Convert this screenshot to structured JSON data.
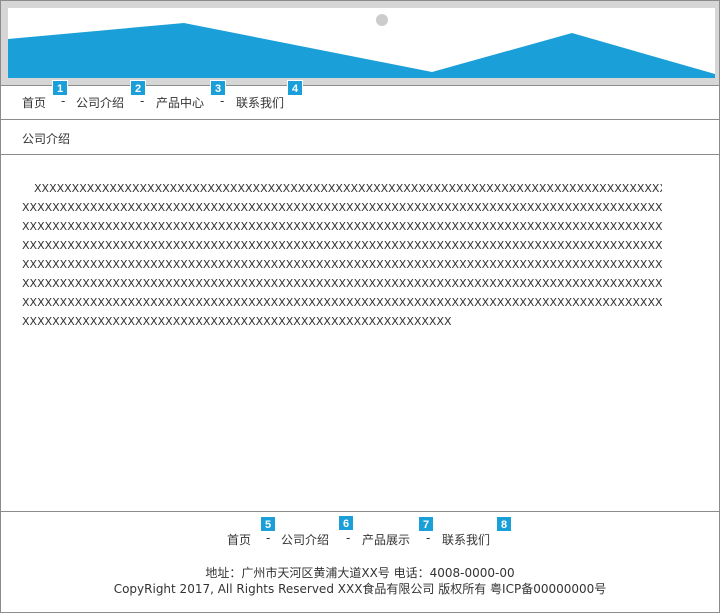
{
  "banner": {
    "colors": {
      "frame": "#d6d6d6",
      "mountain": "#1a9fd9",
      "sun": "#cccccc"
    }
  },
  "nav": {
    "items": [
      {
        "label": "首页",
        "badge": "1"
      },
      {
        "label": "公司介绍",
        "badge": "2"
      },
      {
        "label": "产品中心",
        "badge": "3"
      },
      {
        "label": "联系我们",
        "badge": "4"
      }
    ],
    "separator": "-"
  },
  "breadcrumb": {
    "title": "公司介绍"
  },
  "content": {
    "lines": [
      "XXXXXXXXXXXXXXXXXXXXXXXXXXXXXXXXXXXXXXXXXXXXXXXXXXXXXXXXXXXXXXXXXXXXXXXXXXXXXXXXXXXXXXXXXX",
      "XXXXXXXXXXXXXXXXXXXXXXXXXXXXXXXXXXXXXXXXXXXXXXXXXXXXXXXXXXXXXXXXXXXXXXXXXXXXXXXXXXXXXXXXXXXXXXX",
      "XXXXXXXXXXXXXXXXXXXXXXXXXXXXXXXXXXXXXXXXXXXXXXXXXXXXXXXXXXXXXXXXXXXXXXXXXXXXXXXXXXXXXXXXXXXXXXX",
      "XXXXXXXXXXXXXXXXXXXXXXXXXXXXXXXXXXXXXXXXXXXXXXXXXXXXXXXXXXXXXXXXXXXXXXXXXXXXXXXXXXXXXXXXXXXXXXX",
      "XXXXXXXXXXXXXXXXXXXXXXXXXXXXXXXXXXXXXXXXXXXXXXXXXXXXXXXXXXXXXXXXXXXXXXXXXXXXXXXXXXXXXXXXXXXXXXX",
      "XXXXXXXXXXXXXXXXXXXXXXXXXXXXXXXXXXXXXXXXXXXXXXXXXXXXXXXXXXXXXXXXXXXXXXXXXXXXXXXXXXXXXXXXXXXXXXX",
      "XXXXXXXXXXXXXXXXXXXXXXXXXXXXXXXXXXXXXXXXXXXXXXXXXXXXXXXXXXXXXXXXXXXXXXXXXXXXXXXXXXXXXXXXXXXXXXX",
      "XXXXXXXXXXXXXXXXXXXXXXXXXXXXXXXXXXXXXXXXXXXXXXXXXXXXXXXXX"
    ]
  },
  "footer": {
    "nav": [
      {
        "label": "首页",
        "badge": "5"
      },
      {
        "label": "公司介绍",
        "badge": "6"
      },
      {
        "label": "产品展示",
        "badge": "7"
      },
      {
        "label": "联系我们",
        "badge": "8"
      }
    ],
    "separator": "-",
    "address": "地址：广州市天河区黄浦大道XX号   电话：4008-0000-00",
    "copyright": "CopyRight 2017, All Rights Reserved    XXX食品有限公司 版权所有 粤ICP备00000000号"
  },
  "colors": {
    "accent": "#1a9fd9",
    "border": "#8c8c8c",
    "text": "#333333"
  }
}
